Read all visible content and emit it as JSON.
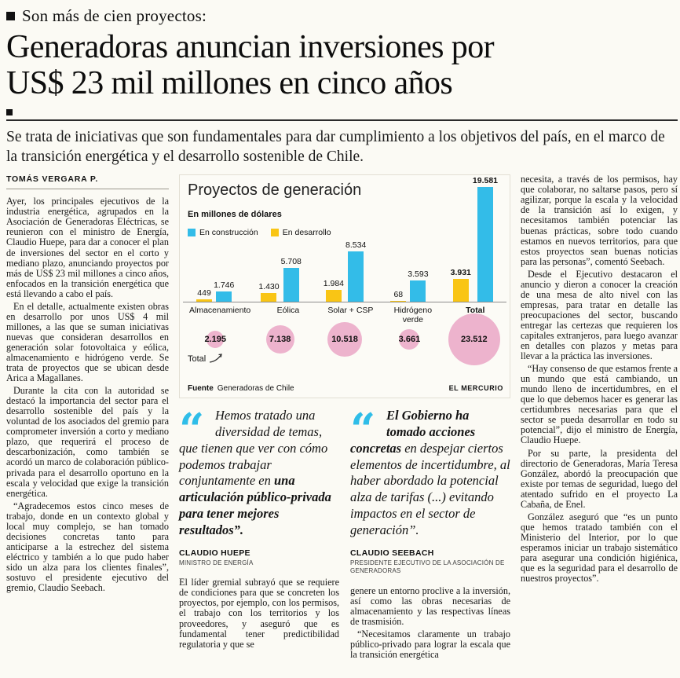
{
  "header": {
    "kicker": "Son más de cien proyectos:",
    "headline_line1": "Generadoras anuncian inversiones por",
    "headline_line2": "US$ 23 mil millones en cinco años",
    "subhead": "Se trata de iniciativas que son fundamentales para dar cumplimiento a los objetivos del país, en el marco de la transición energética y el desarrollo sostenible de Chile."
  },
  "article": {
    "byline": "TOMÁS VERGARA P.",
    "left_column": [
      "Ayer, los principales ejecutivos de la industria energética, agrupados en la Asociación de Generadoras Eléctricas, se reunieron con el ministro de Energía, Claudio Huepe, para dar a conocer el plan de inversiones del sector en el corto y mediano plazo, anunciando proyectos por más de US$ 23 mil millones a cinco años, enfocados en la transición energética que está llevando a cabo el país.",
      "En el detalle, actualmente existen obras en desarrollo por unos US$ 4 mil millones, a las que se suman iniciativas nuevas que consideran desarrollos en generación solar fotovoltaica y eólica, almacenamiento e hidrógeno verde. Se trata de proyectos que se ubican desde Arica a Magallanes.",
      "Durante la cita con la autoridad se destacó la importancia del sector para el desarrollo sostenible del país y la voluntad de los asociados del gremio para comprometer inversión a corto y mediano plazo, que requerirá el proceso de descarbonización, como también se acordó un marco de colaboración público-privada para el desarrollo oportuno en la escala y velocidad que exige la transición energética.",
      "“Agradecemos estos cinco meses de trabajo, donde en un contexto global y local muy complejo, se han tomado decisiones concretas tanto para anticiparse a la estrechez del sistema eléctrico y también a lo que pudo haber sido un alza para los clientes finales”, sostuvo el presidente ejecutivo del gremio, Claudio Seebach."
    ],
    "mid_column_a": [
      "El líder gremial subrayó que se requiere de condiciones para que se concreten los proyectos, por ejemplo, con los permisos, el trabajo con los territorios y los proveedores, y aseguró que es fundamental tener predictibilidad regulatoria y que se"
    ],
    "mid_column_b": [
      "genere un entorno proclive a la inversión, así como las obras necesarias de almacenamiento y las respectivas líneas de trasmisión.",
      "“Necesitamos claramente un trabajo público-privado para lograr la escala que la transición energética"
    ],
    "right_column": [
      "necesita, a través de los permisos, hay que colaborar, no saltarse pasos, pero sí agilizar, porque la escala y la velocidad de la transición así lo exigen, y necesitamos también potenciar las buenas prácticas, sobre todo cuando estamos en nuevos territorios, para que estos proyectos sean buenas noticias para las personas”, comentó Seebach.",
      "Desde el Ejecutivo destacaron el anuncio y dieron a conocer la creación de una mesa de alto nivel con las empresas, para tratar en detalle las preocupaciones del sector, buscando entregar las certezas que requieren los capitales extranjeros, para luego avanzar en detalles con plazos y metas para llevar a la práctica las inversiones.",
      "“Hay consenso de que estamos frente a un mundo que está cambiando, un mundo lleno de incertidumbres, en el que lo que debemos hacer es generar las certidumbres necesarias para que el sector se pueda desarrollar en todo su potencial”, dijo el ministro de Energía, Claudio Huepe.",
      "Por su parte, la presidenta del directorio de Generadoras, María Teresa González, abordó la preocupación que existe por temas de seguridad, luego del atentado sufrido en el proyecto La Cabaña, de Enel.",
      "González aseguró que “es un punto que hemos tratado también con el Ministerio del Interior, por lo que esperamos iniciar un trabajo sistemático para asegurar una condición higiénica, que es la seguridad para el desarrollo de nuestros proyectos”."
    ]
  },
  "quotes": [
    {
      "pre": "Hemos tratado una diversidad de temas, que tienen que ver con cómo podemos trabajar conjuntamente en ",
      "bold": "una articulación público-privada para tener mejores resultados”.",
      "rest": "",
      "name": "CLAUDIO HUEPE",
      "role": "MINISTRO DE ENERGÍA"
    },
    {
      "pre": "",
      "bold": "El Gobierno ha tomado acciones concretas",
      "rest": " en despejar ciertos elementos de incertidumbre, al haber abordado la potencial alza de tarifas (...) evitando impactos en el sector de generación”.",
      "name": "CLAUDIO SEEBACH",
      "role": "PRESIDENTE EJECUTIVO DE LA ASOCIACIÓN DE GENERADORAS"
    }
  ],
  "chart_data": {
    "type": "bar",
    "title": "Proyectos de generación",
    "subtitle": "En millones de dólares",
    "legend": [
      {
        "label": "En construcción",
        "color": "#33bce8"
      },
      {
        "label": "En desarrollo",
        "color": "#f9c515"
      }
    ],
    "categories": [
      "Almacenamiento",
      "Eólica",
      "Solar + CSP",
      "Hidrógeno verde",
      "Total"
    ],
    "series": [
      {
        "name": "En desarrollo",
        "color": "#f9c515",
        "values": [
          449,
          1430,
          1984,
          68,
          3931
        ],
        "labels": [
          "449",
          "1.430",
          "1.984",
          "68",
          "3.931"
        ]
      },
      {
        "name": "En construcción",
        "color": "#33bce8",
        "values": [
          1746,
          5708,
          8534,
          3593,
          19581
        ],
        "labels": [
          "1.746",
          "5.708",
          "8.534",
          "3.593",
          "19.581"
        ]
      }
    ],
    "bold_last_group": true,
    "totals": {
      "pointer_label": "Total",
      "color": "#edb3cd",
      "values": [
        2195,
        7138,
        10518,
        3661,
        23512
      ],
      "labels": [
        "2.195",
        "7.138",
        "10.518",
        "3.661",
        "23.512"
      ]
    },
    "ylim": [
      0,
      19581
    ],
    "grid": false,
    "legend_position": "top-left",
    "source_label": "Fuente",
    "source": "Generadoras de Chile",
    "credit": "EL MERCURIO"
  }
}
